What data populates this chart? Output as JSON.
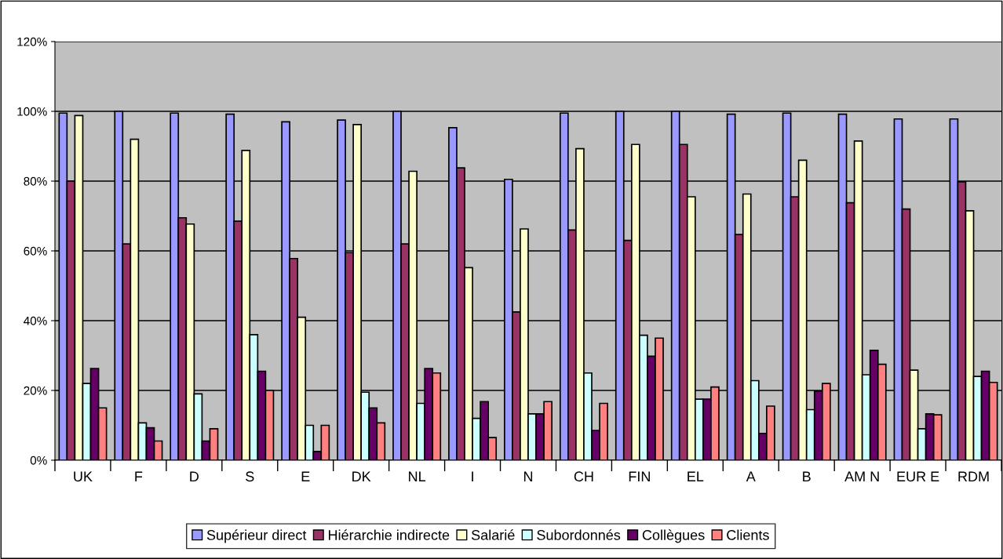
{
  "chart_data": {
    "type": "bar",
    "categories": [
      "UK",
      "F",
      "D",
      "S",
      "E",
      "DK",
      "NL",
      "I",
      "N",
      "CH",
      "FIN",
      "EL",
      "A",
      "B",
      "AM N",
      "EUR E",
      "RDM"
    ],
    "series": [
      {
        "name": "Supérieur direct",
        "color": "#9999ff",
        "values": [
          99.5,
          100,
          99.5,
          99.2,
          97,
          97.5,
          100,
          95.3,
          80.5,
          99.5,
          100,
          100,
          99.2,
          99.5,
          99.2,
          97.8,
          97.8
        ]
      },
      {
        "name": "Hiérarchie indirecte",
        "color": "#993366",
        "values": [
          80,
          62,
          69.5,
          68.5,
          57.8,
          59.5,
          62,
          83.8,
          42.5,
          66,
          63,
          90.5,
          64.7,
          75.5,
          73.8,
          72,
          79.8
        ]
      },
      {
        "name": "Salarié",
        "color": "#ffffcc",
        "values": [
          98.8,
          92,
          67.7,
          88.8,
          41,
          96.2,
          82.8,
          55.2,
          66.3,
          89.3,
          90.5,
          75.5,
          76.3,
          86,
          91.5,
          25.8,
          71.5
        ]
      },
      {
        "name": "Subordonnés",
        "color": "#ccffff",
        "values": [
          22,
          10.7,
          19,
          36,
          10,
          19.5,
          16.3,
          12,
          13.3,
          25,
          35.8,
          17.5,
          22.8,
          14.5,
          24.5,
          9,
          24
        ]
      },
      {
        "name": "Collègues",
        "color": "#660066",
        "values": [
          26.3,
          9.3,
          5.5,
          25.5,
          2.5,
          15,
          26.3,
          16.8,
          13.3,
          8.5,
          29.8,
          17.5,
          7.7,
          19.8,
          31.5,
          13.3,
          25.5
        ]
      },
      {
        "name": "Clients",
        "color": "#ff8080",
        "values": [
          15,
          5.5,
          9,
          20,
          10,
          10.7,
          25,
          6.5,
          16.8,
          16.3,
          35,
          21,
          15.5,
          22,
          27.5,
          13,
          22.3
        ]
      }
    ],
    "ylim": [
      0,
      120
    ],
    "yticks": [
      {
        "value": 0,
        "label": "0%"
      },
      {
        "value": 20,
        "label": "20%"
      },
      {
        "value": 40,
        "label": "40%"
      },
      {
        "value": 60,
        "label": "60%"
      },
      {
        "value": 80,
        "label": "80%"
      },
      {
        "value": 100,
        "label": "100%"
      },
      {
        "value": 120,
        "label": "120%"
      }
    ],
    "grid": "y",
    "legend": "bottom"
  }
}
